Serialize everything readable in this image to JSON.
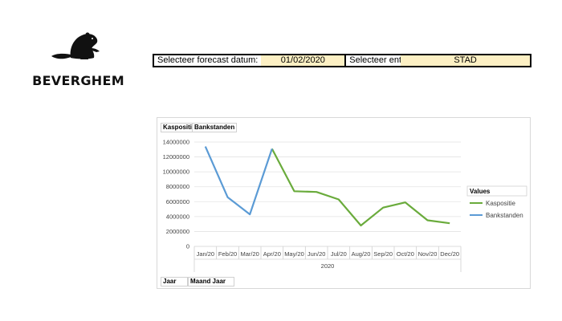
{
  "logo": {
    "brand": "BEVERGHEM",
    "icon": "beaver-icon"
  },
  "selector": {
    "forecast_label": "Selecteer forecast datum:",
    "forecast_value": "01/02/2020",
    "entity_label": "Selecteer entiteit:",
    "entity_value": "STAD",
    "value_bg": "#fdf0c4"
  },
  "filters": {
    "kaspositie": "Kaspositie",
    "bankstanden": "Bankstanden",
    "jaar": "Jaar",
    "maand_jaar": "Maand Jaar"
  },
  "legend": {
    "title": "Values",
    "position": "right"
  },
  "chart_data": {
    "type": "line",
    "categories": [
      "Jan/20",
      "Feb/20",
      "Mar/20",
      "Apr/20",
      "May/20",
      "Jun/20",
      "Jul/20",
      "Aug/20",
      "Sep/20",
      "Oct/20",
      "Nov/20",
      "Dec/20"
    ],
    "group_label": "2020",
    "ylim": [
      0,
      14000000
    ],
    "yticks": [
      0,
      2000000,
      4000000,
      6000000,
      8000000,
      10000000,
      12000000,
      14000000
    ],
    "grid": true,
    "series": [
      {
        "name": "Kaspositie",
        "color": "#6aab3c",
        "values": [
          null,
          null,
          null,
          13100000,
          7400000,
          7300000,
          6300000,
          2800000,
          5200000,
          5900000,
          3500000,
          3100000
        ]
      },
      {
        "name": "Bankstanden",
        "color": "#5b9bd5",
        "values": [
          13400000,
          6600000,
          4300000,
          13100000,
          null,
          null,
          null,
          null,
          null,
          null,
          null,
          null
        ]
      }
    ]
  }
}
